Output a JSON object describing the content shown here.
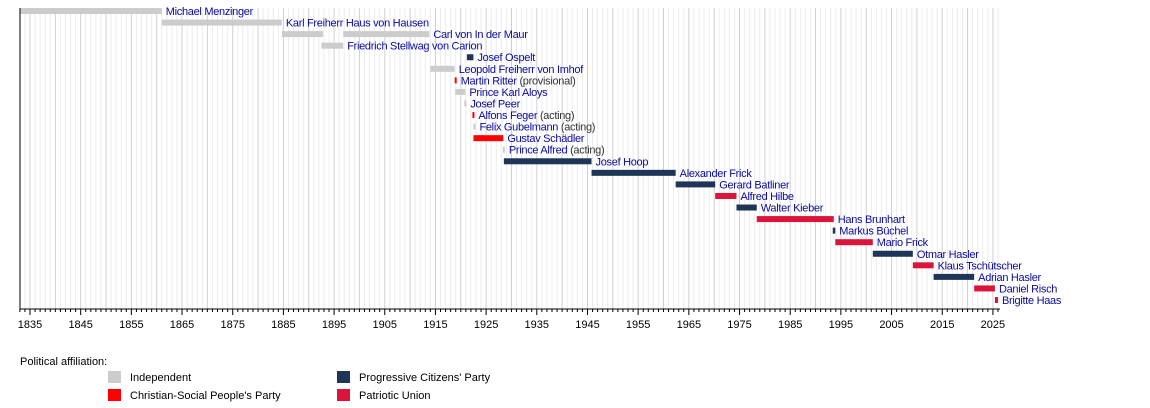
{
  "chart_data": {
    "type": "bar",
    "orientation": "horizontal-timeline",
    "xlim": [
      1833,
      2026
    ],
    "xticks": [
      1835,
      1845,
      1855,
      1865,
      1875,
      1885,
      1895,
      1905,
      1915,
      1925,
      1935,
      1945,
      1955,
      1965,
      1975,
      1985,
      1995,
      2005,
      2015,
      2025
    ],
    "grid": true,
    "legend": {
      "title": "Political affiliation:",
      "position": "bottom-left",
      "items": [
        {
          "key": "ind",
          "label": "Independent"
        },
        {
          "key": "fbp",
          "label": "Progressive Citizens' Party"
        },
        {
          "key": "fbp_csp",
          "label": "Christian-Social People's Party"
        },
        {
          "key": "vu",
          "label": "Patriotic Union"
        }
      ]
    },
    "colors": {
      "ind": "#cccccc",
      "fbp_csp": "#ff0000",
      "fbp": "#1f3557",
      "vu": "#dc143c"
    },
    "entries": [
      {
        "name": "Michael Menzinger",
        "note": "",
        "party": "ind",
        "terms": [
          [
            1833,
            1861
          ]
        ]
      },
      {
        "name": "Karl Freiherr Haus von Hausen",
        "note": "",
        "party": "ind",
        "terms": [
          [
            1861,
            1884.7
          ]
        ]
      },
      {
        "name": "Carl von In der Maur",
        "note": "",
        "party": "ind",
        "terms": [
          [
            1884.7,
            1892.8
          ],
          [
            1896.8,
            1913.8
          ]
        ]
      },
      {
        "name": "Friedrich Stellwag von Carion",
        "note": "",
        "party": "ind",
        "terms": [
          [
            1892.5,
            1896.8
          ]
        ]
      },
      {
        "name": "Josef Ospelt",
        "note": "",
        "party": "fbp",
        "terms": [
          [
            1921.2,
            1922.5
          ]
        ]
      },
      {
        "name": "Leopold Freiherr von Imhof",
        "note": "",
        "party": "ind",
        "terms": [
          [
            1914,
            1918.8
          ]
        ]
      },
      {
        "name": "Martin Ritter",
        "note": "(provisional)",
        "party": "fbp_csp",
        "terms": [
          [
            1918.8,
            1919.1
          ]
        ]
      },
      {
        "name": "Prince Karl Aloys",
        "note": "",
        "party": "ind",
        "terms": [
          [
            1918.9,
            1920.9
          ]
        ]
      },
      {
        "name": "Josef Peer",
        "note": "",
        "party": "ind",
        "terms": [
          [
            1920.7,
            1921.1
          ]
        ]
      },
      {
        "name": "Alfons Feger",
        "note": "(acting)",
        "party": "fbp_csp",
        "terms": [
          [
            1922.3,
            1922.6
          ]
        ]
      },
      {
        "name": "Felix Gubelmann",
        "note": "(acting)",
        "party": "ind",
        "terms": [
          [
            1922.5,
            1922.7
          ]
        ]
      },
      {
        "name": "Gustav Schädler",
        "note": "",
        "party": "fbp_csp",
        "terms": [
          [
            1922.5,
            1928.4
          ]
        ]
      },
      {
        "name": "Prince Alfred",
        "note": "(acting)",
        "party": "ind",
        "terms": [
          [
            1928.3,
            1928.6
          ]
        ]
      },
      {
        "name": "Josef Hoop",
        "note": "",
        "party": "fbp",
        "terms": [
          [
            1928.5,
            1945.8
          ]
        ]
      },
      {
        "name": "Alexander Frick",
        "note": "",
        "party": "fbp",
        "terms": [
          [
            1945.8,
            1962.4
          ]
        ]
      },
      {
        "name": "Gerard Batliner",
        "note": "",
        "party": "fbp",
        "terms": [
          [
            1962.4,
            1970.2
          ]
        ]
      },
      {
        "name": "Alfred Hilbe",
        "note": "",
        "party": "vu",
        "terms": [
          [
            1970.2,
            1974.4
          ]
        ]
      },
      {
        "name": "Walter Kieber",
        "note": "",
        "party": "fbp",
        "terms": [
          [
            1974.4,
            1978.4
          ]
        ]
      },
      {
        "name": "Hans Brunhart",
        "note": "",
        "party": "vu",
        "terms": [
          [
            1978.4,
            1993.6
          ]
        ]
      },
      {
        "name": "Markus Büchel",
        "note": "",
        "party": "fbp",
        "terms": [
          [
            1993.4,
            1993.9
          ]
        ]
      },
      {
        "name": "Mario Frick",
        "note": "",
        "party": "vu",
        "terms": [
          [
            1993.9,
            2001.3
          ]
        ]
      },
      {
        "name": "Otmar Hasler",
        "note": "",
        "party": "fbp",
        "terms": [
          [
            2001.3,
            2009.2
          ]
        ]
      },
      {
        "name": "Klaus Tschütscher",
        "note": "",
        "party": "vu",
        "terms": [
          [
            2009.2,
            2013.3
          ]
        ]
      },
      {
        "name": "Adrian Hasler",
        "note": "",
        "party": "fbp",
        "terms": [
          [
            2013.3,
            2021.3
          ]
        ]
      },
      {
        "name": "Daniel Risch",
        "note": "",
        "party": "vu",
        "terms": [
          [
            2021.3,
            2025.4
          ]
        ]
      },
      {
        "name": "Brigitte Haas",
        "note": "",
        "party": "vu",
        "terms": [
          [
            2025.4,
            2026
          ]
        ]
      }
    ]
  }
}
